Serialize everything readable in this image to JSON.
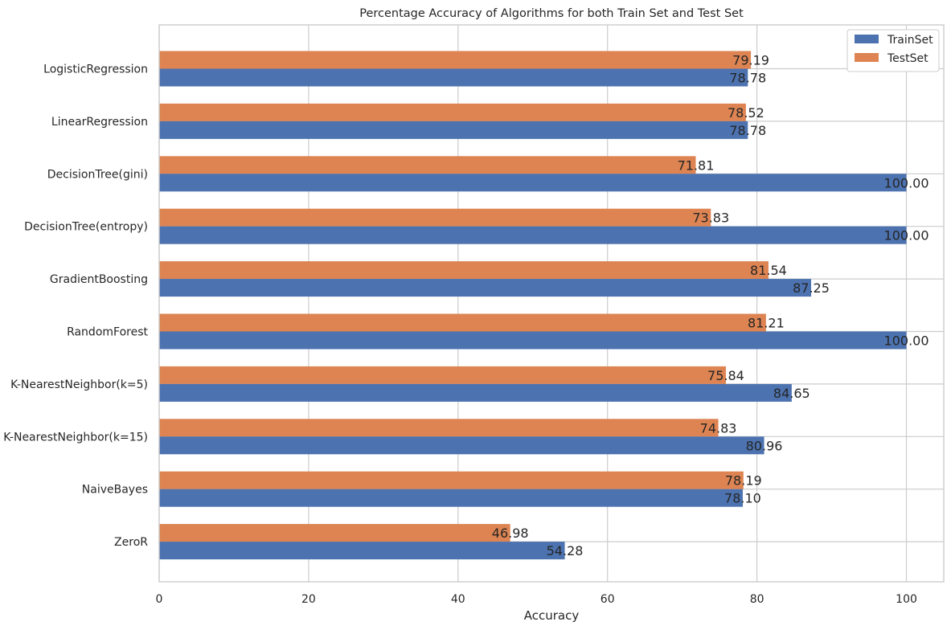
{
  "chart_data": {
    "type": "bar",
    "orientation": "horizontal",
    "title": "Percentage Accuracy of Algorithms for both Train Set and Test Set",
    "xlabel": "Accuracy",
    "ylabel": "",
    "xlim": [
      0,
      105
    ],
    "xticks": [
      0,
      20,
      40,
      60,
      80,
      100
    ],
    "grid": true,
    "legend_position": "top-right",
    "categories": [
      "LogisticRegression",
      "LinearRegression",
      "DecisionTree(gini)",
      "DecisionTree(entropy)",
      "GradientBoosting",
      "RandomForest",
      "K-NearestNeighbor(k=5)",
      "K-NearestNeighbor(k=15)",
      "NaiveBayes",
      "ZeroR"
    ],
    "series": [
      {
        "name": "TrainSet",
        "color": "#4c72b0",
        "values": [
          78.78,
          78.78,
          100.0,
          100.0,
          87.25,
          100.0,
          84.65,
          80.96,
          78.1,
          54.28
        ],
        "labels": [
          "78.78",
          "78.78",
          "100.00",
          "100.00",
          "87.25",
          "100.00",
          "84.65",
          "80.96",
          "78.10",
          "54.28"
        ]
      },
      {
        "name": "TestSet",
        "color": "#dd8452",
        "values": [
          79.19,
          78.52,
          71.81,
          73.83,
          81.54,
          81.21,
          75.84,
          74.83,
          78.19,
          46.98
        ],
        "labels": [
          "79.19",
          "78.52",
          "71.81",
          "73.83",
          "81.54",
          "81.21",
          "75.84",
          "74.83",
          "78.19",
          "46.98"
        ]
      }
    ]
  }
}
